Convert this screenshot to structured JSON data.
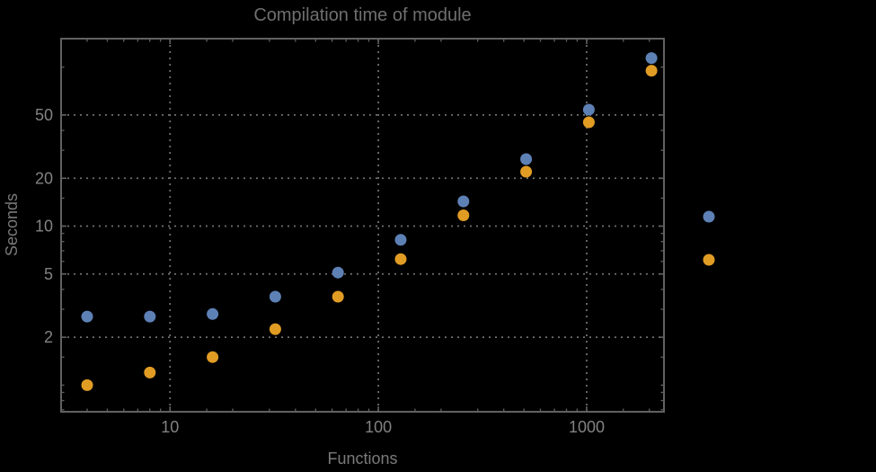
{
  "chart": {
    "title": "Compilation time of module",
    "xlabel": "Functions",
    "ylabel": "Seconds"
  },
  "colors": {
    "background": "#000000",
    "frame": "#616161",
    "grid": "#6f6f6f",
    "tick_text": "#828282",
    "title_text": "#6f6f6f",
    "series1": "#5e81b5",
    "series2": "#e19c24"
  },
  "chart_data": {
    "type": "scatter",
    "title": "Compilation time of module",
    "xlabel": "Functions",
    "ylabel": "Seconds",
    "xscale": "log",
    "yscale": "log",
    "xlim": [
      3,
      2350
    ],
    "ylim": [
      0.68,
      151
    ],
    "grid": "dotted-at-major-ticks",
    "frame": true,
    "x": [
      4,
      8,
      16,
      32,
      64,
      128,
      256,
      512,
      1024,
      2048
    ],
    "series": [
      {
        "name": "series-1-blue",
        "color": "#5e81b5",
        "values": [
          2.7,
          2.7,
          2.8,
          3.6,
          5.1,
          8.2,
          14.3,
          26.4,
          54,
          114
        ]
      },
      {
        "name": "series-2-orange",
        "color": "#e19c24",
        "values": [
          1.0,
          1.2,
          1.5,
          2.25,
          3.6,
          6.2,
          11.7,
          22,
          45,
          95
        ]
      }
    ],
    "x_major_ticks": [
      10,
      100,
      1000
    ],
    "x_tick_labels": [
      "10",
      "100",
      "1000"
    ],
    "x_minor_ticks": [
      4,
      5,
      6,
      7,
      8,
      9,
      15,
      20,
      30,
      40,
      50,
      60,
      70,
      80,
      90,
      150,
      200,
      300,
      400,
      500,
      600,
      700,
      800,
      900,
      1500,
      2000
    ],
    "y_major_ticks": [
      2,
      5,
      10,
      20,
      50
    ],
    "y_tick_labels": [
      "2",
      "5",
      "10",
      "20",
      "50"
    ],
    "y_minor_ticks": [
      0.7,
      0.8,
      0.9,
      1,
      1.5,
      3,
      4,
      6,
      7,
      8,
      9,
      15,
      30,
      40,
      100
    ],
    "legend": {
      "position": "outside-right",
      "labels_visible": false,
      "entries": [
        {
          "series": "series-1-blue",
          "color": "#5e81b5"
        },
        {
          "series": "series-2-orange",
          "color": "#e19c24"
        }
      ]
    }
  }
}
